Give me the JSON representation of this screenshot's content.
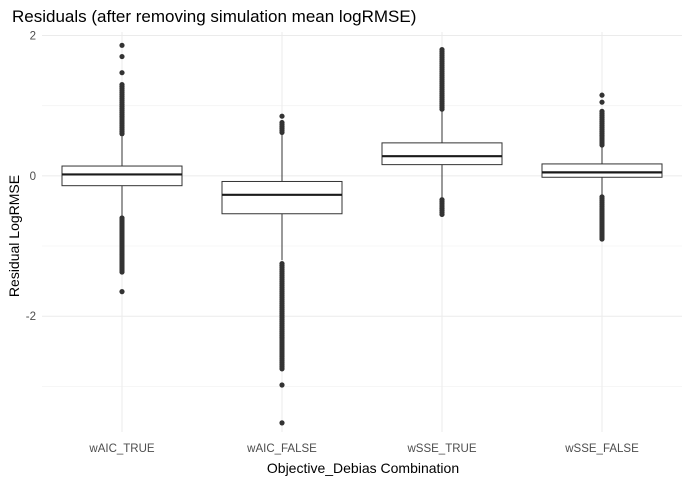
{
  "chart_data": {
    "type": "boxplot",
    "title": "Residuals (after removing simulation mean logRMSE)",
    "xlabel": "Objective_Debias Combination",
    "ylabel": "Residual LogRMSE",
    "ylim": [
      -3.65,
      2.05
    ],
    "yticks": [
      -2,
      0,
      2
    ],
    "grid": true,
    "categories": [
      "wAIC_TRUE",
      "wAIC_FALSE",
      "wSSE_TRUE",
      "wSSE_FALSE"
    ],
    "boxes": [
      {
        "category": "wAIC_TRUE",
        "q1": -0.14,
        "median": 0.02,
        "q3": 0.14,
        "whisker_low": -0.57,
        "whisker_high": 0.56,
        "outliers_low": {
          "min": -1.37,
          "max": -0.6
        },
        "outliers_high": {
          "min": 0.6,
          "max": 1.3
        },
        "extra_outliers": [
          -1.65,
          1.47,
          1.7,
          1.86
        ]
      },
      {
        "category": "wAIC_FALSE",
        "q1": -0.54,
        "median": -0.27,
        "q3": -0.08,
        "whisker_low": -1.2,
        "whisker_high": 0.6,
        "outliers_low": {
          "min": -2.75,
          "max": -1.25
        },
        "outliers_high": {
          "min": 0.62,
          "max": 0.76
        },
        "extra_outliers": [
          -2.98,
          -3.52,
          0.85
        ]
      },
      {
        "category": "wSSE_TRUE",
        "q1": 0.16,
        "median": 0.28,
        "q3": 0.47,
        "whisker_low": -0.31,
        "whisker_high": 0.92,
        "outliers_low": {
          "min": -0.55,
          "max": -0.34
        },
        "outliers_high": {
          "min": 0.95,
          "max": 1.8
        },
        "extra_outliers": []
      },
      {
        "category": "wSSE_FALSE",
        "q1": -0.02,
        "median": 0.05,
        "q3": 0.17,
        "whisker_low": -0.28,
        "whisker_high": 0.42,
        "outliers_low": {
          "min": -0.9,
          "max": -0.3
        },
        "outliers_high": {
          "min": 0.44,
          "max": 0.92
        },
        "extra_outliers": [
          1.05,
          1.15
        ]
      }
    ]
  }
}
